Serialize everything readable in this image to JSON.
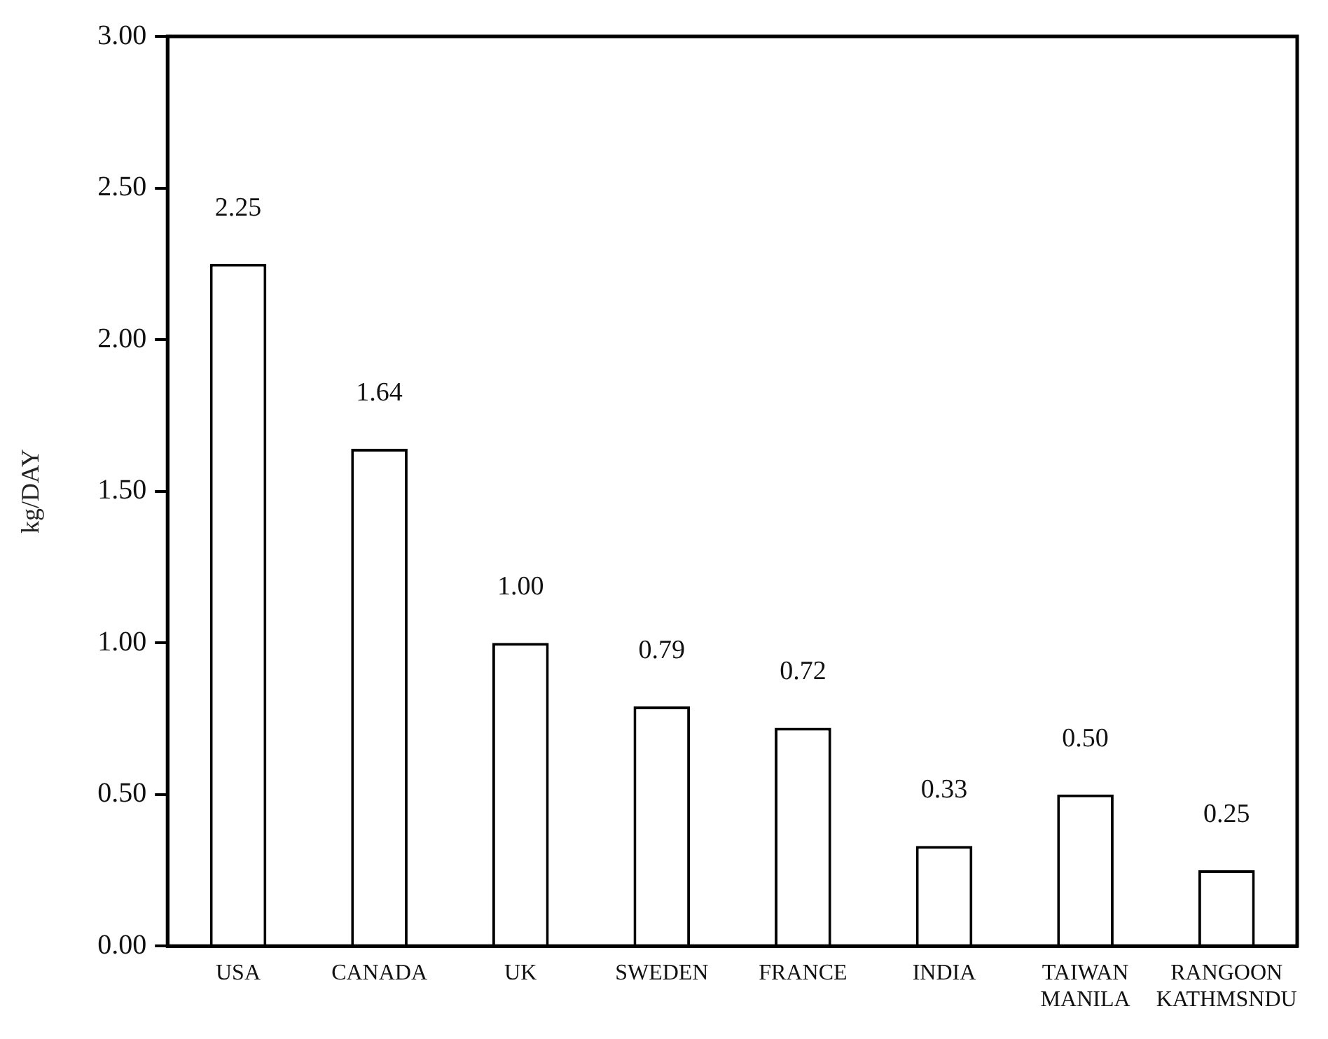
{
  "chart_data": {
    "type": "bar",
    "ylabel": "kg/DAY",
    "categories": [
      "USA",
      "CANADA",
      "UK",
      "SWEDEN",
      "FRANCE",
      "INDIA",
      "TAIWAN\nMANILA",
      "RANGOON\nKATHMSNDU"
    ],
    "values": [
      2.25,
      1.64,
      1.0,
      0.79,
      0.72,
      0.33,
      0.5,
      0.25
    ],
    "color": "#ffffff",
    "ylim": [
      0,
      3
    ],
    "yticks": [
      {
        "value": 0,
        "label": "0.00"
      },
      {
        "value": 0.5,
        "label": "0.50"
      },
      {
        "value": 1,
        "label": "1.00"
      },
      {
        "value": 1.5,
        "label": "1.50"
      },
      {
        "value": 2,
        "label": "2.00"
      },
      {
        "value": 2.5,
        "label": "2.50"
      },
      {
        "value": 3,
        "label": "3.00"
      }
    ],
    "value_labels": [
      "2.25",
      "1.64",
      "1.00",
      "0.79",
      "0.72",
      "0.33",
      "0.50",
      "0.25"
    ],
    "grid": false,
    "legend": false
  }
}
